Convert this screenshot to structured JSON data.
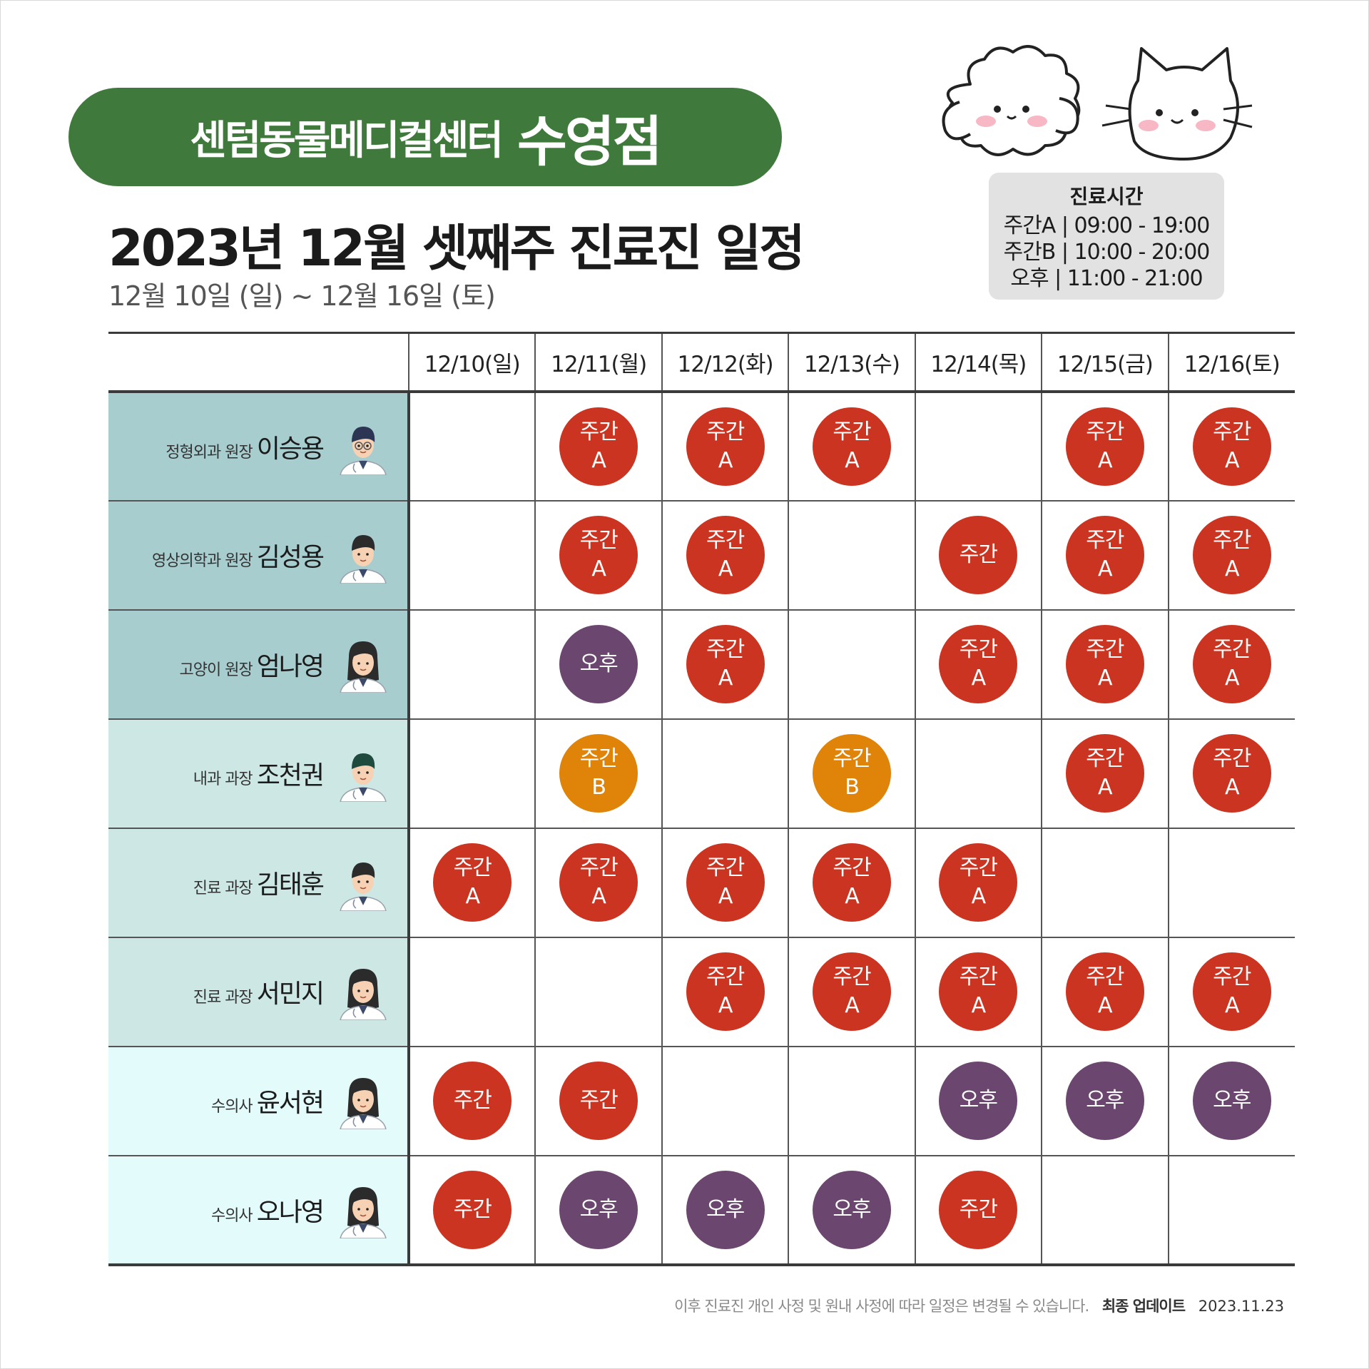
{
  "header": {
    "brand_name": "센텀동물메디컬센터",
    "branch": "수영점",
    "title": "2023년 12월 셋째주 진료진 일정",
    "subtitle": "12월 10일 (일) ~ 12월 16일 (토)"
  },
  "hours": {
    "title": "진료시간",
    "lines": [
      "주간A | 09:00 - 19:00",
      "주간B | 10:00 - 20:00",
      "오후 | 11:00 - 21:00"
    ]
  },
  "days": [
    "12/10(일)",
    "12/11(월)",
    "12/12(화)",
    "12/13(수)",
    "12/14(목)",
    "12/15(금)",
    "12/16(토)"
  ],
  "shift_labels": {
    "A": [
      "주간",
      "A"
    ],
    "B": [
      "주간",
      "B"
    ],
    "D": [
      "주간"
    ],
    "P": [
      "오후"
    ]
  },
  "colors": {
    "brand": "#3f7a3c",
    "day_shift": "#cc3422",
    "day_b_shift": "#e08309",
    "pm_shift": "#6b466e",
    "row_bg_1": "#a8cdcf",
    "row_bg_2": "#cde8e4",
    "row_bg_3": "#e4fbfb"
  },
  "doctors": [
    {
      "role": "정형외과 원장",
      "name": "이승용",
      "avatar": "male-glasses",
      "bg": "#a8cdcf",
      "shifts": [
        "",
        "A",
        "A",
        "A",
        "",
        "A",
        "A"
      ]
    },
    {
      "role": "영상의학과 원장",
      "name": "김성용",
      "avatar": "male-smile",
      "bg": "#a8cdcf",
      "shifts": [
        "",
        "A",
        "A",
        "",
        "D",
        "A",
        "A"
      ]
    },
    {
      "role": "고양이 원장",
      "name": "엄나영",
      "avatar": "female-bun",
      "bg": "#a8cdcf",
      "shifts": [
        "",
        "P",
        "A",
        "",
        "A",
        "A",
        "A"
      ]
    },
    {
      "role": "내과 과장",
      "name": "조천권",
      "avatar": "male-green",
      "bg": "#cde8e4",
      "shifts": [
        "",
        "B",
        "",
        "B",
        "",
        "A",
        "A"
      ]
    },
    {
      "role": "진료 과장",
      "name": "김태훈",
      "avatar": "male-dark",
      "bg": "#cde8e4",
      "shifts": [
        "A",
        "A",
        "A",
        "A",
        "A",
        "",
        ""
      ]
    },
    {
      "role": "진료 과장",
      "name": "서민지",
      "avatar": "female-long",
      "bg": "#cde8e4",
      "shifts": [
        "",
        "",
        "A",
        "A",
        "A",
        "A",
        "A"
      ]
    },
    {
      "role": "수의사",
      "name": "윤서현",
      "avatar": "female-long",
      "bg": "#e4fbfb",
      "shifts": [
        "D",
        "D",
        "",
        "",
        "P",
        "P",
        "P"
      ]
    },
    {
      "role": "수의사",
      "name": "오나영",
      "avatar": "female-short",
      "bg": "#e4fbfb",
      "shifts": [
        "D",
        "P",
        "P",
        "P",
        "D",
        "",
        ""
      ]
    }
  ],
  "footer": {
    "note": "이후 진료진 개인 사정 및 원내 사정에 따라 일정은 변경될 수 있습니다.",
    "update_label": "최종 업데이트",
    "update_date": "2023.11.23"
  }
}
